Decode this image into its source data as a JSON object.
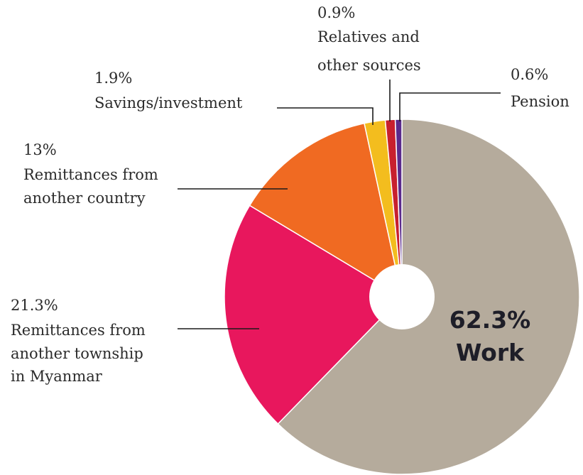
{
  "chart_data": {
    "type": "pie",
    "style": "donut",
    "start_angle_deg": 0,
    "direction": "clockwise",
    "slices": [
      {
        "name": "Work",
        "value": 62.3,
        "pct_label": "62.3%",
        "label_lines": [
          "Work"
        ],
        "color": "#b5ab9c"
      },
      {
        "name": "Remittances from another township in Myanmar",
        "value": 21.3,
        "pct_label": "21.3%",
        "label_lines": [
          "Remittances from",
          "another township",
          "in Myanmar"
        ],
        "color": "#e8175d"
      },
      {
        "name": "Remittances from another country",
        "value": 13,
        "pct_label": "13%",
        "label_lines": [
          "Remittances from",
          "another country"
        ],
        "color": "#f06a22"
      },
      {
        "name": "Savings/investment",
        "value": 1.9,
        "pct_label": "1.9%",
        "label_lines": [
          "Savings/investment"
        ],
        "color": "#f3bd1e"
      },
      {
        "name": "Relatives and other sources",
        "value": 0.9,
        "pct_label": "0.9%",
        "label_lines": [
          "Relatives and",
          "other sources"
        ],
        "color": "#c8202e"
      },
      {
        "name": "Pension",
        "value": 0.6,
        "pct_label": "0.6%",
        "label_lines": [
          "Pension"
        ],
        "color": "#5b2a8c"
      }
    ]
  }
}
